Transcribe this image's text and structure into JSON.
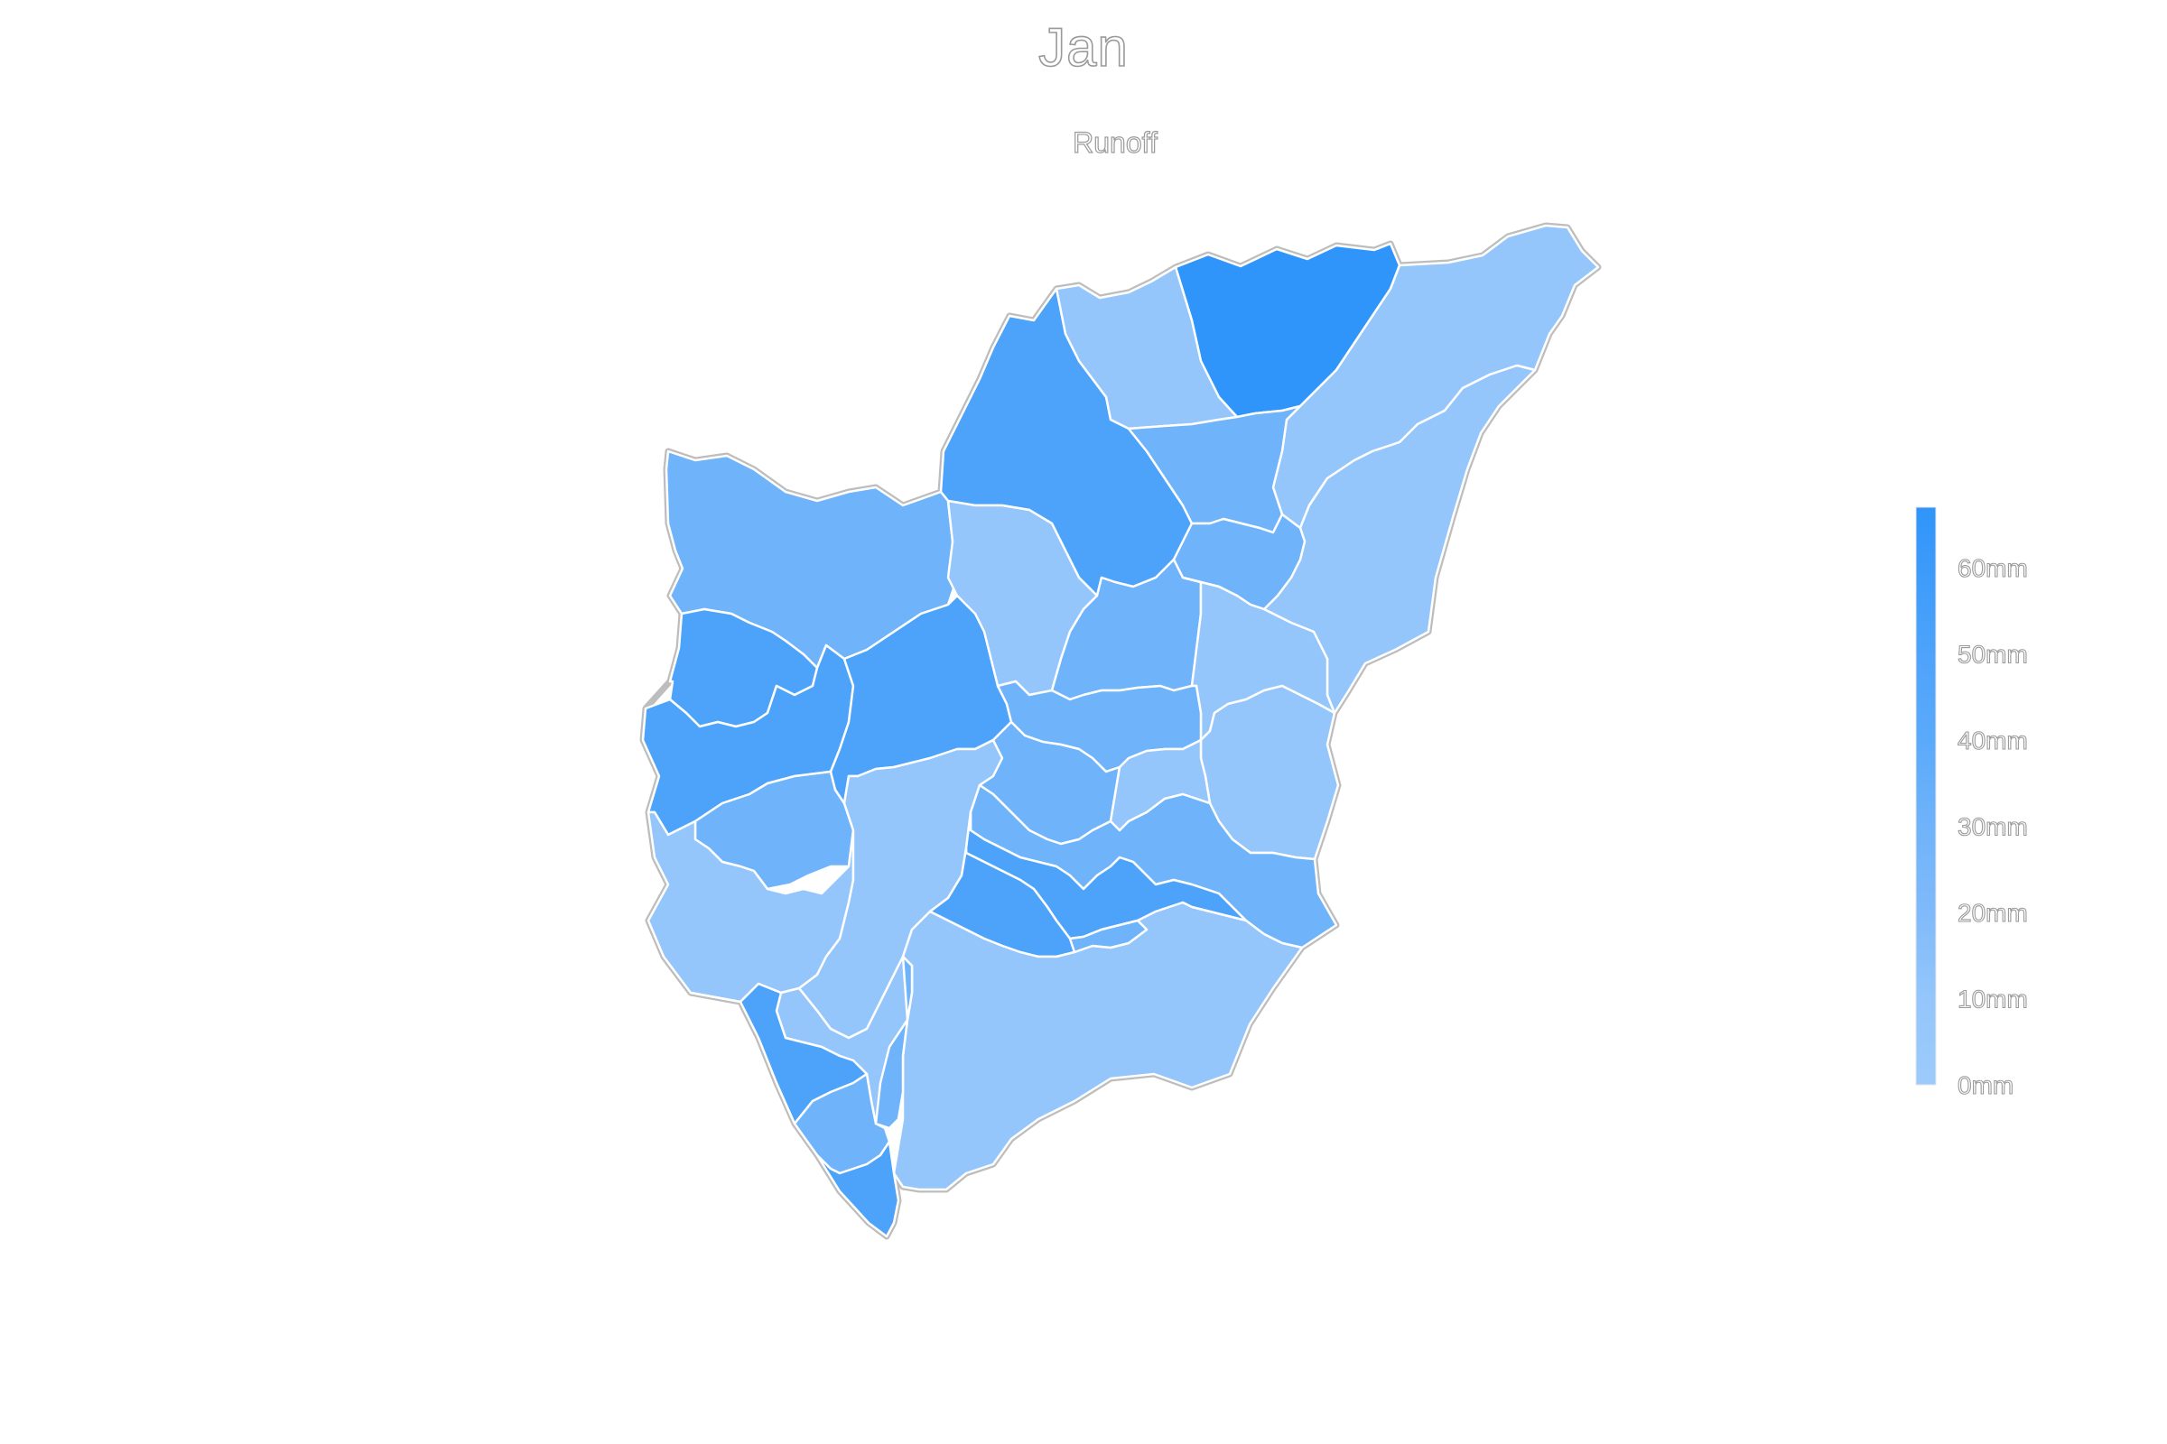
{
  "title": "Jan",
  "subtitle": "Runoff",
  "colors": {
    "ramp": [
      "#94c6fb",
      "#6fb3fa",
      "#4da3fa",
      "#2f95fa"
    ],
    "outline": "#bdbdbd",
    "border": "#ffffff"
  },
  "legend": {
    "type": "colorbar",
    "position": "right",
    "min": 0,
    "max": 67,
    "ticks": [
      {
        "value": 0,
        "label": "0mm"
      },
      {
        "value": 10,
        "label": "10mm"
      },
      {
        "value": 20,
        "label": "20mm"
      },
      {
        "value": 30,
        "label": "30mm"
      },
      {
        "value": 40,
        "label": "40mm"
      },
      {
        "value": 50,
        "label": "50mm"
      },
      {
        "value": 60,
        "label": "60mm"
      }
    ]
  },
  "regions": [
    {
      "id": "r1",
      "value": 65
    },
    {
      "id": "r2",
      "value": 8
    },
    {
      "id": "r3",
      "value": 7
    },
    {
      "id": "r4",
      "value": 6
    },
    {
      "id": "r5",
      "value": 44
    },
    {
      "id": "r6",
      "value": 30
    },
    {
      "id": "r7",
      "value": 28
    },
    {
      "id": "r8",
      "value": 26
    },
    {
      "id": "r9",
      "value": 44
    },
    {
      "id": "r10",
      "value": 9
    },
    {
      "id": "r11",
      "value": 28
    },
    {
      "id": "r12",
      "value": 8
    },
    {
      "id": "r13",
      "value": 45
    },
    {
      "id": "r14",
      "value": 27
    },
    {
      "id": "r15",
      "value": 42
    },
    {
      "id": "r16",
      "value": 26
    },
    {
      "id": "r17",
      "value": 5
    },
    {
      "id": "r18",
      "value": 8
    },
    {
      "id": "r19",
      "value": 7
    },
    {
      "id": "r20",
      "value": 27
    },
    {
      "id": "r21",
      "value": 12
    },
    {
      "id": "r22",
      "value": 30
    },
    {
      "id": "r23",
      "value": 45
    },
    {
      "id": "r24",
      "value": 44
    },
    {
      "id": "r25",
      "value": 8
    },
    {
      "id": "r26",
      "value": 6
    },
    {
      "id": "r27",
      "value": 31
    },
    {
      "id": "r28",
      "value": 46
    },
    {
      "id": "r29",
      "value": 29
    },
    {
      "id": "r30",
      "value": 44
    },
    {
      "id": "r31",
      "value": 32
    }
  ]
}
